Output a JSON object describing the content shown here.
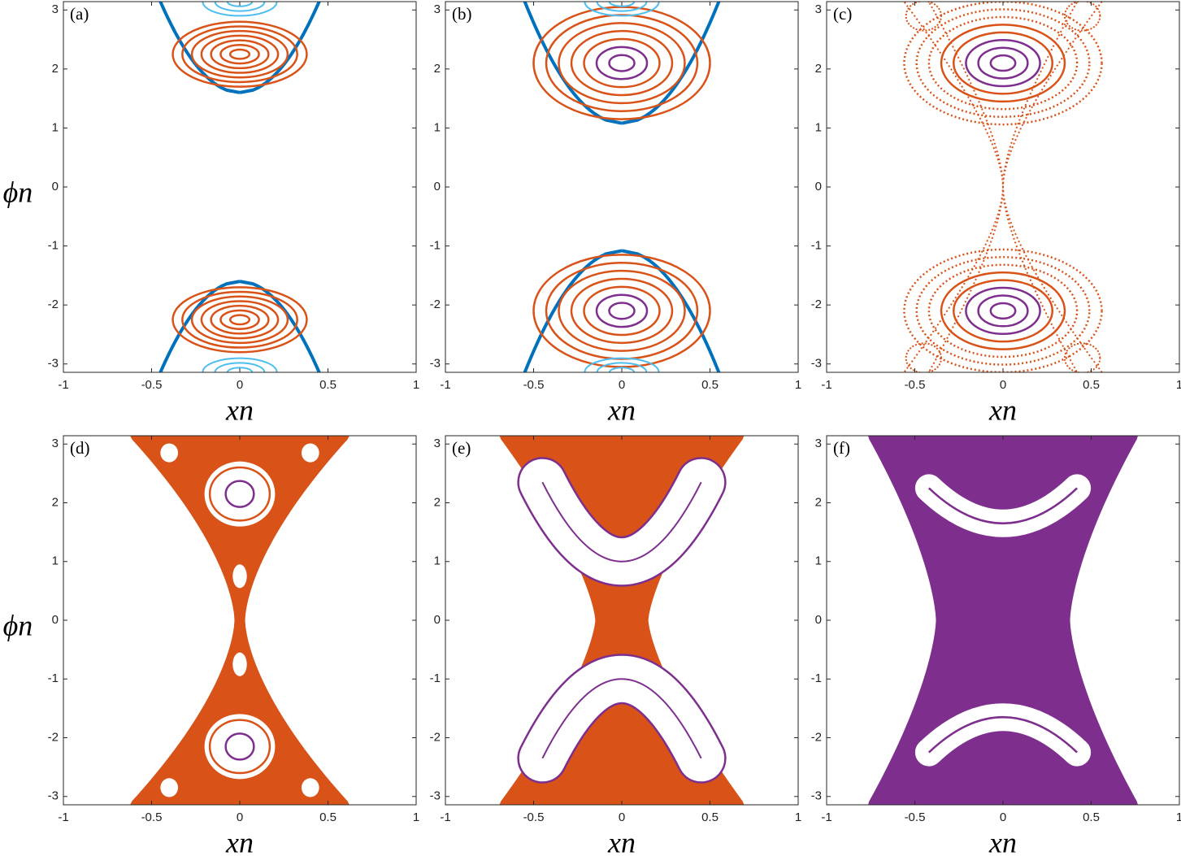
{
  "chart_data": [
    {
      "type": "scatter",
      "label": "(a)",
      "xlabel": "xn",
      "ylabel": "ϕn",
      "xlim": [
        -1,
        1
      ],
      "ylim": [
        -3.1416,
        3.1416
      ],
      "xticks": [
        -1,
        -0.5,
        0,
        0.5,
        1
      ],
      "yticks": [
        -3,
        -2,
        -1,
        0,
        1,
        2,
        3
      ],
      "colors": [
        "#0072bd",
        "#d95319",
        "#4dbeee"
      ]
    },
    {
      "type": "scatter",
      "label": "(b)",
      "xlabel": "xn",
      "xlim": [
        -1,
        1
      ],
      "ylim": [
        -3.1416,
        3.1416
      ],
      "xticks": [
        -1,
        -0.5,
        0,
        0.5,
        1
      ],
      "yticks": [
        -3,
        -2,
        -1,
        0,
        1,
        2,
        3
      ],
      "colors": [
        "#0072bd",
        "#d95319",
        "#4dbeee",
        "#7e2f8e"
      ]
    },
    {
      "type": "scatter",
      "label": "(c)",
      "xlabel": "xn",
      "xlim": [
        -1,
        1
      ],
      "ylim": [
        -3.1416,
        3.1416
      ],
      "xticks": [
        -1,
        -0.5,
        0,
        0.5,
        1
      ],
      "yticks": [
        -3,
        -2,
        -1,
        0,
        1,
        2,
        3
      ],
      "colors": [
        "#d95319",
        "#7e2f8e"
      ]
    },
    {
      "type": "scatter",
      "label": "(d)",
      "xlabel": "xn",
      "ylabel": "ϕn",
      "xlim": [
        -1,
        1
      ],
      "ylim": [
        -3.1416,
        3.1416
      ],
      "xticks": [
        -1,
        -0.5,
        0,
        0.5,
        1
      ],
      "yticks": [
        -3,
        -2,
        -1,
        0,
        1,
        2,
        3
      ],
      "colors": [
        "#d95319",
        "#7e2f8e"
      ]
    },
    {
      "type": "scatter",
      "label": "(e)",
      "xlabel": "xn",
      "xlim": [
        -1,
        1
      ],
      "ylim": [
        -3.1416,
        3.1416
      ],
      "xticks": [
        -1,
        -0.5,
        0,
        0.5,
        1
      ],
      "yticks": [
        -3,
        -2,
        -1,
        0,
        1,
        2,
        3
      ],
      "colors": [
        "#d95319",
        "#7e2f8e"
      ]
    },
    {
      "type": "scatter",
      "label": "(f)",
      "xlabel": "xn",
      "xlim": [
        -1,
        1
      ],
      "ylim": [
        -3.1416,
        3.1416
      ],
      "xticks": [
        -1,
        -0.5,
        0,
        0.5,
        1
      ],
      "yticks": [
        -3,
        -2,
        -1,
        0,
        1,
        2,
        3
      ],
      "colors": [
        "#7e2f8e"
      ]
    }
  ]
}
